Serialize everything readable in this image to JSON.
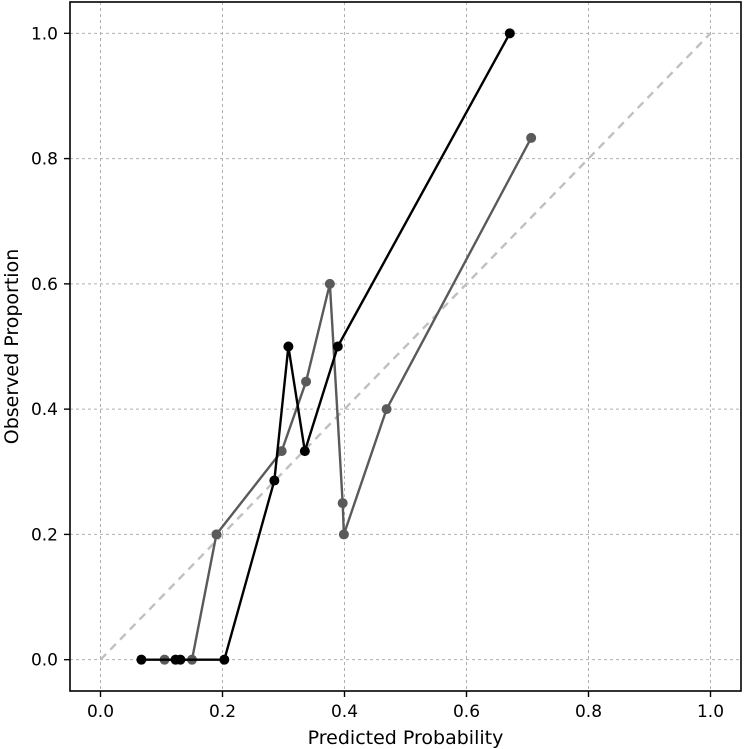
{
  "chart_data": {
    "type": "line",
    "title": "",
    "xlabel": "Predicted Probability",
    "ylabel": "Observed Proportion",
    "xlim": [
      -0.05,
      1.05
    ],
    "ylim": [
      -0.05,
      1.05
    ],
    "xticks": [
      "0.0",
      "0.2",
      "0.4",
      "0.6",
      "0.8",
      "1.0"
    ],
    "yticks": [
      "0.0",
      "0.2",
      "0.4",
      "0.6",
      "0.8",
      "1.0"
    ],
    "grid": true,
    "reference_line": {
      "x": [
        0,
        1
      ],
      "y": [
        0,
        1
      ],
      "style": "dashed",
      "color": "#c0c0c0"
    },
    "series": [
      {
        "color": "#5a5a5a",
        "x": [
          0.105,
          0.15,
          0.19,
          0.297,
          0.337,
          0.376,
          0.397,
          0.399,
          0.469,
          0.706
        ],
        "y": [
          0.0,
          0.0,
          0.2,
          0.333,
          0.444,
          0.6,
          0.25,
          0.2,
          0.4,
          0.833
        ]
      },
      {
        "color": "#000000",
        "x": [
          0.067,
          0.123,
          0.131,
          0.203,
          0.285,
          0.308,
          0.335,
          0.389,
          0.671
        ],
        "y": [
          0.0,
          0.0,
          0.0,
          0.0,
          0.286,
          0.5,
          0.333,
          0.5,
          1.0
        ]
      }
    ]
  }
}
